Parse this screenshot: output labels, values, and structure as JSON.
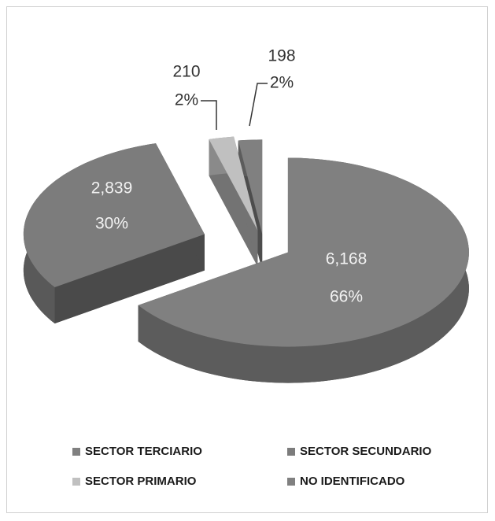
{
  "chart_data": {
    "type": "pie3d",
    "categories": [
      "SECTOR TERCIARIO",
      "SECTOR SECUNDARIO",
      "SECTOR PRIMARIO",
      "NO IDENTIFICADO"
    ],
    "values": [
      6168,
      2839,
      210,
      198
    ],
    "value_labels": [
      "6,168",
      "2,839",
      "210",
      "198"
    ],
    "percentages": [
      66,
      30,
      2,
      2
    ],
    "percentage_labels": [
      "66%",
      "30%",
      "2%",
      "2%"
    ],
    "colors": [
      "#808080",
      "#7c7c7c",
      "#c0c0c0",
      "#808080"
    ],
    "legend": "bottom"
  }
}
